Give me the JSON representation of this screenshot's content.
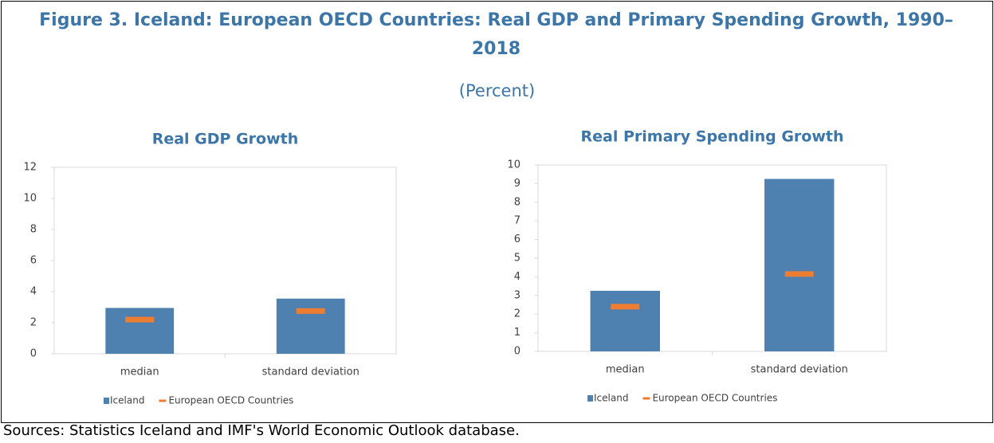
{
  "title": "Figure 3. Iceland: European OECD Countries: Real GDP and Primary Spending Growth, 1990–2018",
  "subtitle": "(Percent)",
  "source": "Sources: Statistics Iceland and IMF's World Economic Outlook database.",
  "chart_data": [
    {
      "type": "bar",
      "title": "Real GDP Growth",
      "categories": [
        "median",
        "standard deviation"
      ],
      "series": [
        {
          "name": "Iceland",
          "type": "bar",
          "color": "#4e81b0",
          "values": [
            2.95,
            3.55
          ]
        },
        {
          "name": "European OECD Countries",
          "type": "marker",
          "color": "#ed7d31",
          "values": [
            2.2,
            2.75
          ]
        }
      ],
      "ylim": [
        0,
        12
      ],
      "yticks": [
        0,
        2,
        4,
        6,
        8,
        10,
        12
      ]
    },
    {
      "type": "bar",
      "title": "Real Primary Spending Growth",
      "categories": [
        "median",
        "standard deviation"
      ],
      "series": [
        {
          "name": "Iceland",
          "type": "bar",
          "color": "#4e81b0",
          "values": [
            3.25,
            9.25
          ]
        },
        {
          "name": "European OECD Countries",
          "type": "marker",
          "color": "#ed7d31",
          "values": [
            2.4,
            4.15
          ]
        }
      ],
      "ylim": [
        0,
        10
      ],
      "yticks": [
        0,
        1,
        2,
        3,
        4,
        5,
        6,
        7,
        8,
        9,
        10
      ]
    }
  ]
}
